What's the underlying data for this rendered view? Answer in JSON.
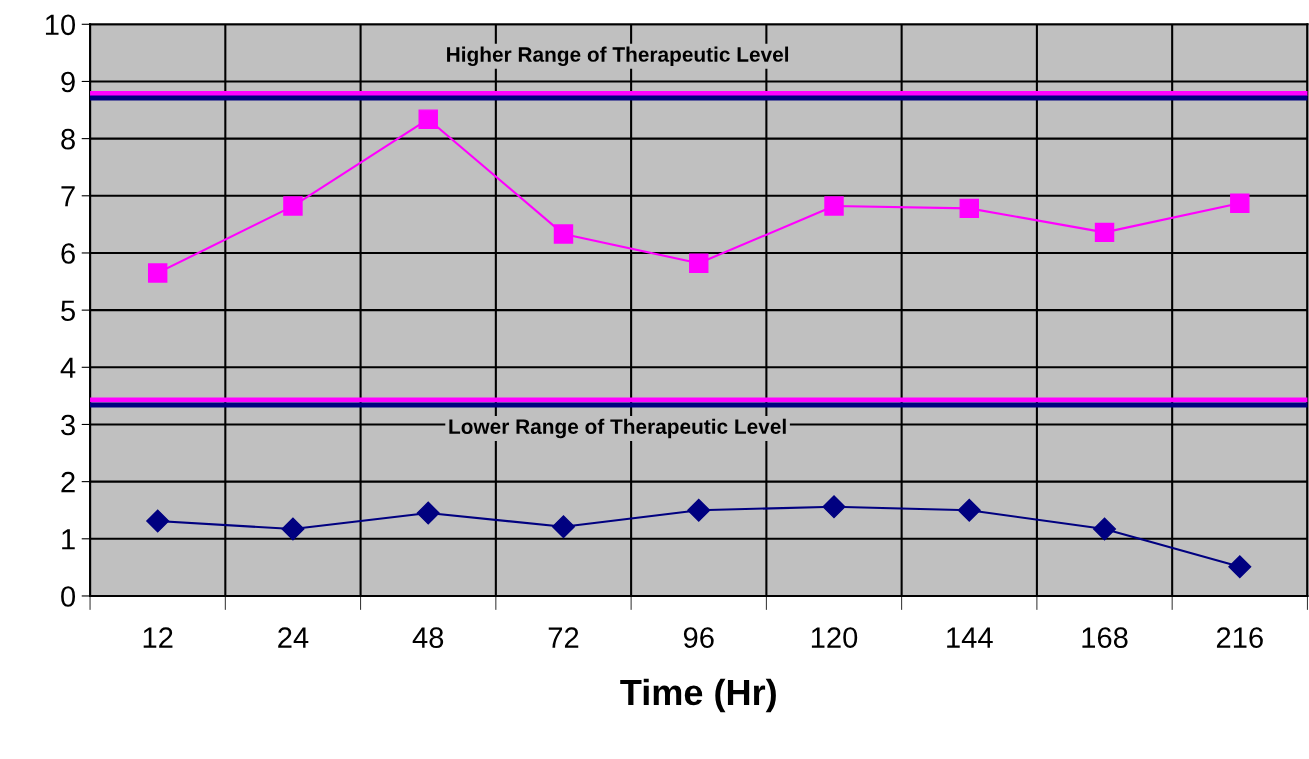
{
  "chart_data": {
    "type": "line",
    "xlabel": "Time (Hr)",
    "categories": [
      "12",
      "24",
      "48",
      "72",
      "96",
      "120",
      "144",
      "168",
      "216"
    ],
    "series": [
      {
        "color": "#ff00ff",
        "marker": "square",
        "values": [
          5.65,
          6.82,
          8.34,
          6.33,
          5.82,
          6.82,
          6.78,
          6.36,
          6.87
        ]
      },
      {
        "color": "#000080",
        "marker": "diamond",
        "values": [
          1.31,
          1.17,
          1.45,
          1.21,
          1.5,
          1.56,
          1.5,
          1.17,
          0.51
        ]
      }
    ],
    "ref_lines": [
      {
        "axis": "y",
        "value": 8.79,
        "color": "#ff00ff",
        "label": "Higher Range of Therapeutic Level"
      },
      {
        "axis": "y",
        "value": 8.71,
        "color": "#000080"
      },
      {
        "axis": "y",
        "value": 3.43,
        "color": "#ff00ff",
        "label": "Lower Range of Therapeutic Level"
      },
      {
        "axis": "y",
        "value": 3.34,
        "color": "#000080"
      }
    ],
    "ylim": [
      0,
      10
    ],
    "yticks": [
      0,
      1,
      2,
      3,
      4,
      5,
      6,
      7,
      8,
      9,
      10
    ],
    "grid": true
  }
}
